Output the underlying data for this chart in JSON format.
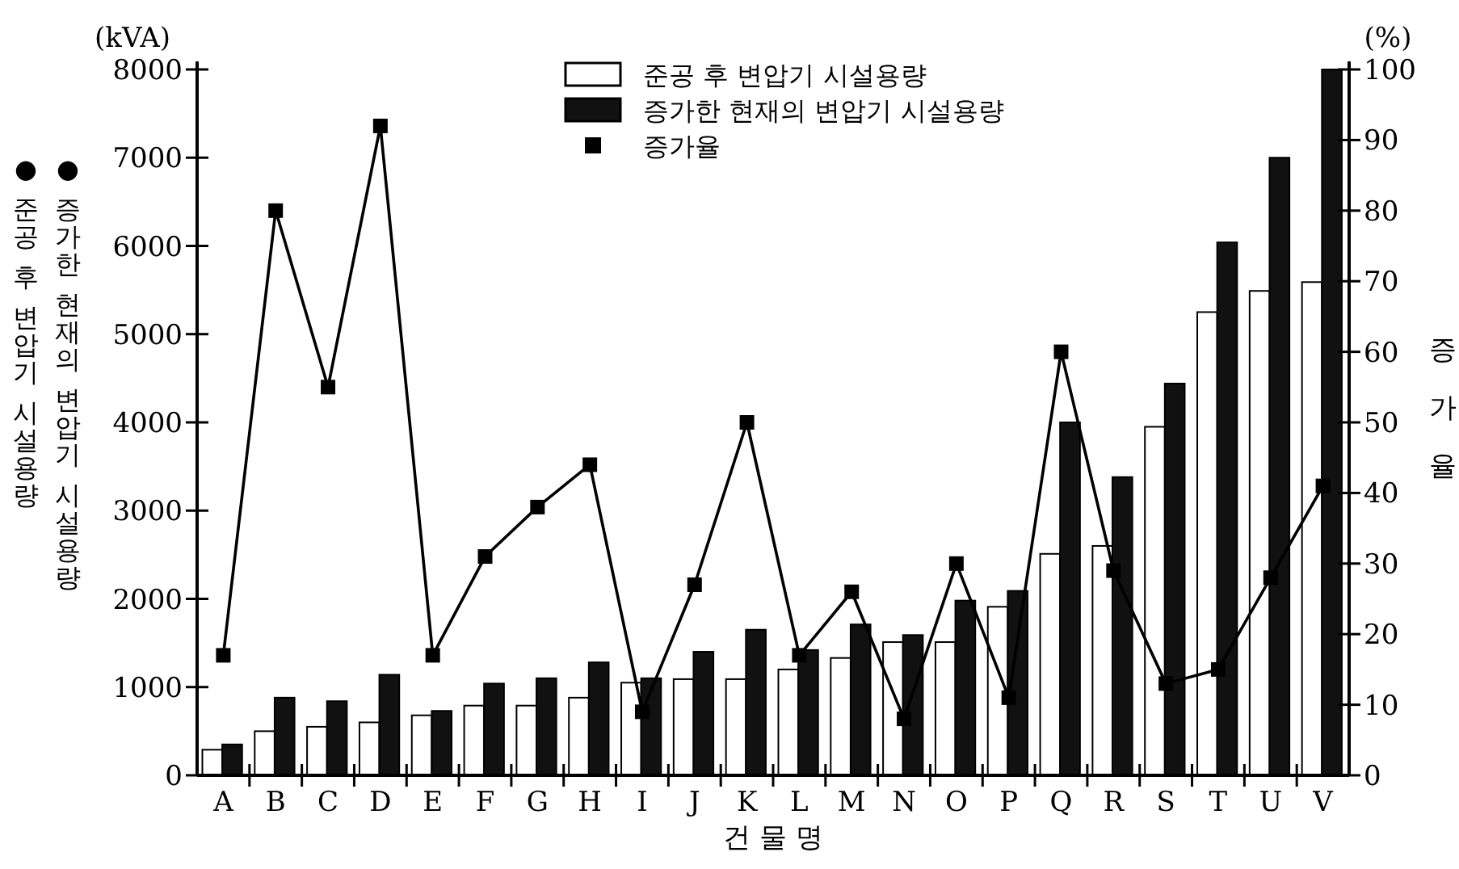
{
  "chart_data": {
    "type": "bar",
    "categories": [
      "A",
      "B",
      "C",
      "D",
      "E",
      "F",
      "G",
      "H",
      "I",
      "J",
      "K",
      "L",
      "M",
      "N",
      "O",
      "P",
      "Q",
      "R",
      "S",
      "T",
      "U",
      "V"
    ],
    "series": [
      {
        "name": "준공 후 변압기 시설용량",
        "color": "#ffffff",
        "values": [
          290,
          500,
          550,
          600,
          680,
          790,
          790,
          880,
          1050,
          1090,
          1090,
          1200,
          1330,
          1510,
          1510,
          1910,
          2510,
          2600,
          3950,
          5250,
          5490,
          5590
        ]
      },
      {
        "name": "증가한 현재의 변압기 시설용량",
        "color": "#111111",
        "values": [
          350,
          880,
          840,
          1140,
          730,
          1040,
          1100,
          1280,
          1100,
          1400,
          1650,
          1420,
          1710,
          1590,
          1980,
          2090,
          4000,
          3380,
          4440,
          6040,
          7000,
          8000
        ]
      },
      {
        "name": "증가율",
        "type": "line",
        "axis": "y2",
        "color": "#000000",
        "marker": "square",
        "values": [
          17,
          80,
          55,
          92,
          17,
          31,
          38,
          44,
          9,
          27,
          50,
          17,
          26,
          8,
          30,
          11,
          60,
          29,
          13,
          15,
          28,
          41
        ]
      }
    ],
    "ylabel": "(kVA)",
    "y2label": "증가율",
    "xlabel": "건 물 명",
    "annotations": [
      "● 준공 후 변압기 시설용량",
      "● 증가한 현재의 변압기 시설용량",
      "(%)"
    ],
    "ylim": [
      0,
      8000
    ],
    "yticks": [
      0,
      1000,
      2000,
      3000,
      4000,
      5000,
      6000,
      7000,
      8000
    ],
    "y2lim": [
      0,
      100
    ],
    "y2ticks": [
      0,
      10,
      20,
      30,
      40,
      50,
      60,
      70,
      80,
      90,
      100
    ],
    "legend": "top",
    "grid": false
  }
}
